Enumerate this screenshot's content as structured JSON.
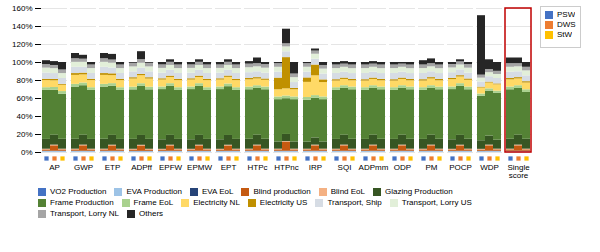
{
  "chart_data": {
    "type": "bar",
    "stacked": true,
    "grid": true,
    "legend": "bottom",
    "categories": [
      "AP",
      "GWP",
      "ETP",
      "ADPff",
      "EPFW",
      "EPMW",
      "EPT",
      "HTPc",
      "HTPnc",
      "IRP",
      "SQI",
      "ADPmm",
      "ODP",
      "PM",
      "POCP",
      "WDP",
      "Single\nscore"
    ],
    "ylim": [
      0,
      160
    ],
    "yticks": [
      {
        "value": 0,
        "label": "0%"
      },
      {
        "value": 20,
        "label": "20%"
      },
      {
        "value": 40,
        "label": "40%"
      },
      {
        "value": 60,
        "label": "60%"
      },
      {
        "value": 80,
        "label": "80%"
      },
      {
        "value": 100,
        "label": "100%"
      },
      {
        "value": 120,
        "label": "120%"
      },
      {
        "value": 140,
        "label": "140%"
      },
      {
        "value": 160,
        "label": "160%"
      }
    ],
    "highlight": {
      "category": "Single\nscore",
      "color": "#c00000"
    },
    "series": [
      {
        "name": "VO2 Production",
        "color": "#4472c4"
      },
      {
        "name": "EVA Production",
        "color": "#9dc3e6"
      },
      {
        "name": "EVA EoL",
        "color": "#264478"
      },
      {
        "name": "Blind production",
        "color": "#c55a11"
      },
      {
        "name": "Blind EoL",
        "color": "#f4b183"
      },
      {
        "name": "Glazing Production",
        "color": "#375623"
      },
      {
        "name": "Frame Production",
        "color": "#548235"
      },
      {
        "name": "Frame EoL",
        "color": "#a9d18e"
      },
      {
        "name": "Electricity NL",
        "color": "#ffd966"
      },
      {
        "name": "Electricity US",
        "color": "#c09000"
      },
      {
        "name": "Transport, Ship",
        "color": "#d6dce4"
      },
      {
        "name": "Transport, Lorry US",
        "color": "#e2efd9"
      },
      {
        "name": "Transport, Lorry NL",
        "color": "#a5a5a5"
      },
      {
        "name": "Others",
        "color": "#262626"
      }
    ],
    "groups": [
      {
        "name": "PSW",
        "color": "#4472c4",
        "values": [
          [
            0.2971,
            0.7922,
            0.2971,
            1.4854,
            0.7922,
            10.8932,
            54.466,
            2.9709,
            7.9223,
            1.4854,
            6.932,
            5.4466,
            3.9612,
            4.2583
          ],
          [
            0.3,
            0.8,
            0.3,
            1.5,
            0.8,
            11,
            58,
            3,
            10,
            2,
            7,
            5.5,
            4,
            5.8
          ],
          [
            0.3,
            0.8,
            0.3,
            1.5,
            0.8,
            11,
            58,
            3,
            10,
            2,
            7,
            5.5,
            4,
            5.8
          ],
          [
            0.2,
            0.8,
            0.3,
            1.5,
            0.8,
            11,
            55,
            3,
            9,
            1.5,
            6.5,
            5.5,
            4,
            0.9
          ],
          [
            0.2885,
            0.7692,
            0.2885,
            1.4423,
            0.7692,
            10.5769,
            55.7692,
            2.8846,
            7.6923,
            1.4423,
            6.25,
            5.2885,
            3.8462,
            2.6923
          ],
          [
            0.2885,
            0.7692,
            0.2885,
            1.4423,
            0.7692,
            10.5769,
            55.7692,
            2.8846,
            7.6923,
            1.4423,
            6.25,
            5.2885,
            3.8462,
            2.6923
          ],
          [
            0.2885,
            0.7692,
            0.2885,
            1.4423,
            0.7692,
            10.5769,
            55.7692,
            2.8846,
            7.6923,
            1.4423,
            6.25,
            5.2885,
            3.8462,
            2.6923
          ],
          [
            0.3,
            0.8,
            0.3,
            1.5,
            0.8,
            11,
            55,
            3,
            8,
            1.5,
            6.5,
            5.5,
            4,
            2.8
          ],
          [
            0.3,
            0.8,
            0.3,
            1.5,
            0.8,
            8,
            47,
            3,
            8,
            13,
            6.5,
            5.5,
            4,
            1.3
          ],
          [
            0.297,
            0.7921,
            0.297,
            1.4851,
            0.7921,
            7.9208,
            46.5347,
            2.9703,
            16.8317,
            4.9505,
            6.4356,
            5.4455,
            3.9604,
            1.2871
          ],
          [
            0.297,
            0.7921,
            0.297,
            1.4851,
            0.7921,
            10.8911,
            54.4554,
            2.9703,
            7.4257,
            1.4851,
            6.9307,
            5.4455,
            3.9604,
            2.7723
          ],
          [
            0.297,
            0.7921,
            0.297,
            1.4851,
            0.7921,
            10.8911,
            54.4554,
            2.9703,
            7.4257,
            1.4851,
            6.9307,
            5.4455,
            3.9604,
            2.7723
          ],
          [
            0.297,
            0.7921,
            0.297,
            1.4851,
            0.7921,
            10.8911,
            54.4554,
            2.9703,
            7.4257,
            1.4851,
            6.9307,
            5.4455,
            3.9604,
            2.7723
          ],
          [
            0.2971,
            0.7922,
            0.2971,
            1.4854,
            0.7922,
            10.8932,
            54.466,
            2.9709,
            7.4272,
            1.4854,
            6.932,
            5.4466,
            3.9612,
            4.7534
          ],
          [
            0.2885,
            0.7692,
            0.2885,
            1.4423,
            0.7692,
            10.5769,
            55.7692,
            2.8846,
            8.1731,
            1.4423,
            6.25,
            5.2885,
            3.8462,
            2.2115
          ],
          [
            0.2859,
            0.7624,
            0.2859,
            1.4295,
            0.7624,
            9.5298,
            49.5549,
            2.3824,
            6.6708,
            0.953,
            5.7179,
            4.2884,
            3.3354,
            66.0414
          ],
          [
            0.3,
            0.8,
            0.3,
            1.5,
            0.8,
            11,
            55,
            3,
            8,
            1.5,
            7,
            5.5,
            4,
            6.3
          ]
        ]
      },
      {
        "name": "DWS",
        "color": "#ed7d31",
        "values": [
          [
            0.3,
            0.8,
            0.3,
            6,
            0.8,
            11,
            50,
            3,
            7.5,
            1.5,
            6.5,
            5.5,
            3.5,
            4.3
          ],
          [
            0.3,
            0.8,
            0.3,
            6,
            0.8,
            11,
            55,
            3,
            9,
            2,
            6.5,
            5.5,
            3.5,
            4.3
          ],
          [
            0.2973,
            0.7927,
            0.2973,
            5.9455,
            0.7927,
            10.9,
            54.5,
            2.9727,
            8.9182,
            1.9818,
            6.4409,
            5.45,
            3.4682,
            6.2427
          ],
          [
            0.1982,
            0.7929,
            0.2973,
            5.9469,
            0.7929,
            10.9027,
            54.5133,
            2.9735,
            8.9204,
            1.4867,
            6.9381,
            5.4513,
            3.9646,
            8.8212
          ],
          [
            0.2971,
            0.7923,
            0.2971,
            5.9423,
            0.7923,
            10.8942,
            54.4712,
            2.9712,
            6.9327,
            1.4856,
            6.4375,
            5.4471,
            3.4663,
            2.7731
          ],
          [
            0.2971,
            0.7923,
            0.2971,
            5.9423,
            0.7923,
            10.8942,
            54.4712,
            2.9712,
            6.9327,
            1.4856,
            6.4375,
            5.4471,
            3.4663,
            2.7731
          ],
          [
            0.2957,
            0.7885,
            0.2957,
            5.9139,
            0.7885,
            10.8421,
            54.2105,
            2.9569,
            7.3923,
            1.4785,
            6.4067,
            5.4211,
            3.4498,
            2.7598
          ],
          [
            0.3,
            0.8,
            0.3,
            6,
            0.8,
            11,
            52,
            3,
            7.5,
            1.5,
            6.5,
            5.5,
            3.5,
            6.3
          ],
          [
            0.2978,
            0.7942,
            0.2978,
            9.9275,
            0.7942,
            7.942,
            39.7101,
            2.9783,
            7.942,
            34.7464,
            6.4529,
            5.4601,
            3.4746,
            16.1819
          ],
          [
            0.3,
            0.8,
            0.3,
            6,
            0.8,
            8,
            44,
            3,
            22,
            12,
            6.5,
            5.5,
            3.5,
            2.3
          ],
          [
            0.3,
            0.8,
            0.3,
            6,
            0.8,
            11,
            52,
            3,
            7,
            1.5,
            6.5,
            5.5,
            3.5,
            2.8
          ],
          [
            0.3,
            0.8,
            0.3,
            6,
            0.8,
            11,
            52,
            3,
            7,
            1.5,
            6.5,
            5.5,
            3.5,
            2.8
          ],
          [
            0.3,
            0.8,
            0.3,
            6,
            0.8,
            11,
            52,
            3,
            7,
            1.5,
            6.5,
            5.5,
            3.5,
            1.8
          ],
          [
            0.3,
            0.8,
            0.3,
            6,
            0.8,
            11,
            52,
            3,
            7.5,
            1.5,
            6.5,
            5.5,
            3.5,
            5.3
          ],
          [
            0.2971,
            0.7923,
            0.2971,
            5.9423,
            0.7923,
            10.8942,
            54.4712,
            2.9712,
            7.4279,
            1.4856,
            6.4375,
            5.4471,
            3.4663,
            2.2779
          ],
          [
            0.3,
            0.8,
            0.3,
            6,
            0.8,
            10,
            50,
            2.5,
            6.5,
            1,
            6,
            4.5,
            3.5,
            10.8
          ],
          [
            0.3,
            0.8,
            0.3,
            6,
            0.8,
            11,
            52,
            3,
            7.5,
            1.5,
            6.5,
            5.5,
            3.5,
            6.3
          ]
        ]
      },
      {
        "name": "StW",
        "color": "#ffc000",
        "values": [
          [
            0.3,
            0.8,
            0.3,
            1.5,
            0.8,
            11,
            50,
            3,
            7,
            1,
            6.5,
            5.5,
            4,
            8.3
          ],
          [
            0.297,
            0.7921,
            0.297,
            1.4851,
            0.7921,
            10.8911,
            54.4554,
            2.9703,
            7.9208,
            1.4851,
            6.4356,
            5.4455,
            3.9604,
            2.7723
          ],
          [
            0.297,
            0.7921,
            0.297,
            1.4851,
            0.7921,
            10.8911,
            54.4554,
            2.9703,
            7.9208,
            1.4851,
            6.4356,
            5.4455,
            3.9604,
            2.7723
          ],
          [
            0.2,
            0.8,
            0.3,
            1.5,
            0.8,
            11,
            55,
            3,
            9,
            1.5,
            6.5,
            5.5,
            4,
            0.9
          ],
          [
            0.297,
            0.7921,
            0.297,
            1.4851,
            0.7921,
            10.8911,
            54.4554,
            2.9703,
            7.9208,
            1.4851,
            6.4356,
            5.4455,
            3.9604,
            2.7723
          ],
          [
            0.297,
            0.7921,
            0.297,
            1.4851,
            0.7921,
            10.8911,
            54.4554,
            2.9703,
            7.9208,
            1.4851,
            6.4356,
            5.4455,
            3.9604,
            2.7723
          ],
          [
            0.297,
            0.7921,
            0.297,
            1.4851,
            0.7921,
            10.8911,
            54.4554,
            2.9703,
            7.9208,
            1.4851,
            6.4356,
            5.4455,
            3.9604,
            2.7723
          ],
          [
            0.3,
            0.8,
            0.3,
            1.5,
            0.8,
            11,
            55,
            3,
            7.5,
            1.5,
            6.5,
            5.5,
            4,
            2.3
          ],
          [
            0.3,
            0.8,
            0.3,
            1.5,
            0.8,
            8,
            47,
            3,
            8,
            1.5,
            6.5,
            5.5,
            4,
            12.8
          ],
          [
            0.3,
            0.8,
            0.3,
            1.5,
            0.8,
            8,
            47,
            3,
            16,
            3,
            6.5,
            5.5,
            4,
            3.3
          ],
          [
            0.3,
            0.8,
            0.3,
            1.5,
            0.8,
            11,
            55,
            3,
            7,
            1.5,
            6.5,
            5.5,
            4,
            2.8
          ],
          [
            0.3,
            0.8,
            0.3,
            1.5,
            0.8,
            11,
            55,
            3,
            7,
            1.5,
            6.5,
            5.5,
            4,
            2.8
          ],
          [
            0.3,
            0.8,
            0.3,
            1.5,
            0.8,
            11,
            55,
            3,
            7,
            1.5,
            6.5,
            5.5,
            4,
            2.8
          ],
          [
            0.3,
            0.8,
            0.3,
            1.5,
            0.8,
            11,
            55,
            3,
            7,
            1.5,
            6.5,
            5.5,
            4,
            2.8
          ],
          [
            0.3,
            0.8,
            0.3,
            1.5,
            0.8,
            11,
            55,
            3,
            7.5,
            1.5,
            6.5,
            5.5,
            4,
            2.3
          ],
          [
            0.3,
            0.8,
            0.3,
            1.5,
            0.8,
            10,
            52,
            2.5,
            7,
            1,
            6,
            4.5,
            3.5,
            9.8
          ],
          [
            0.3,
            0.8,
            0.3,
            1.5,
            0.8,
            11,
            52,
            3,
            7.5,
            1.5,
            6.5,
            5.5,
            4,
            5.3
          ]
        ]
      }
    ]
  }
}
